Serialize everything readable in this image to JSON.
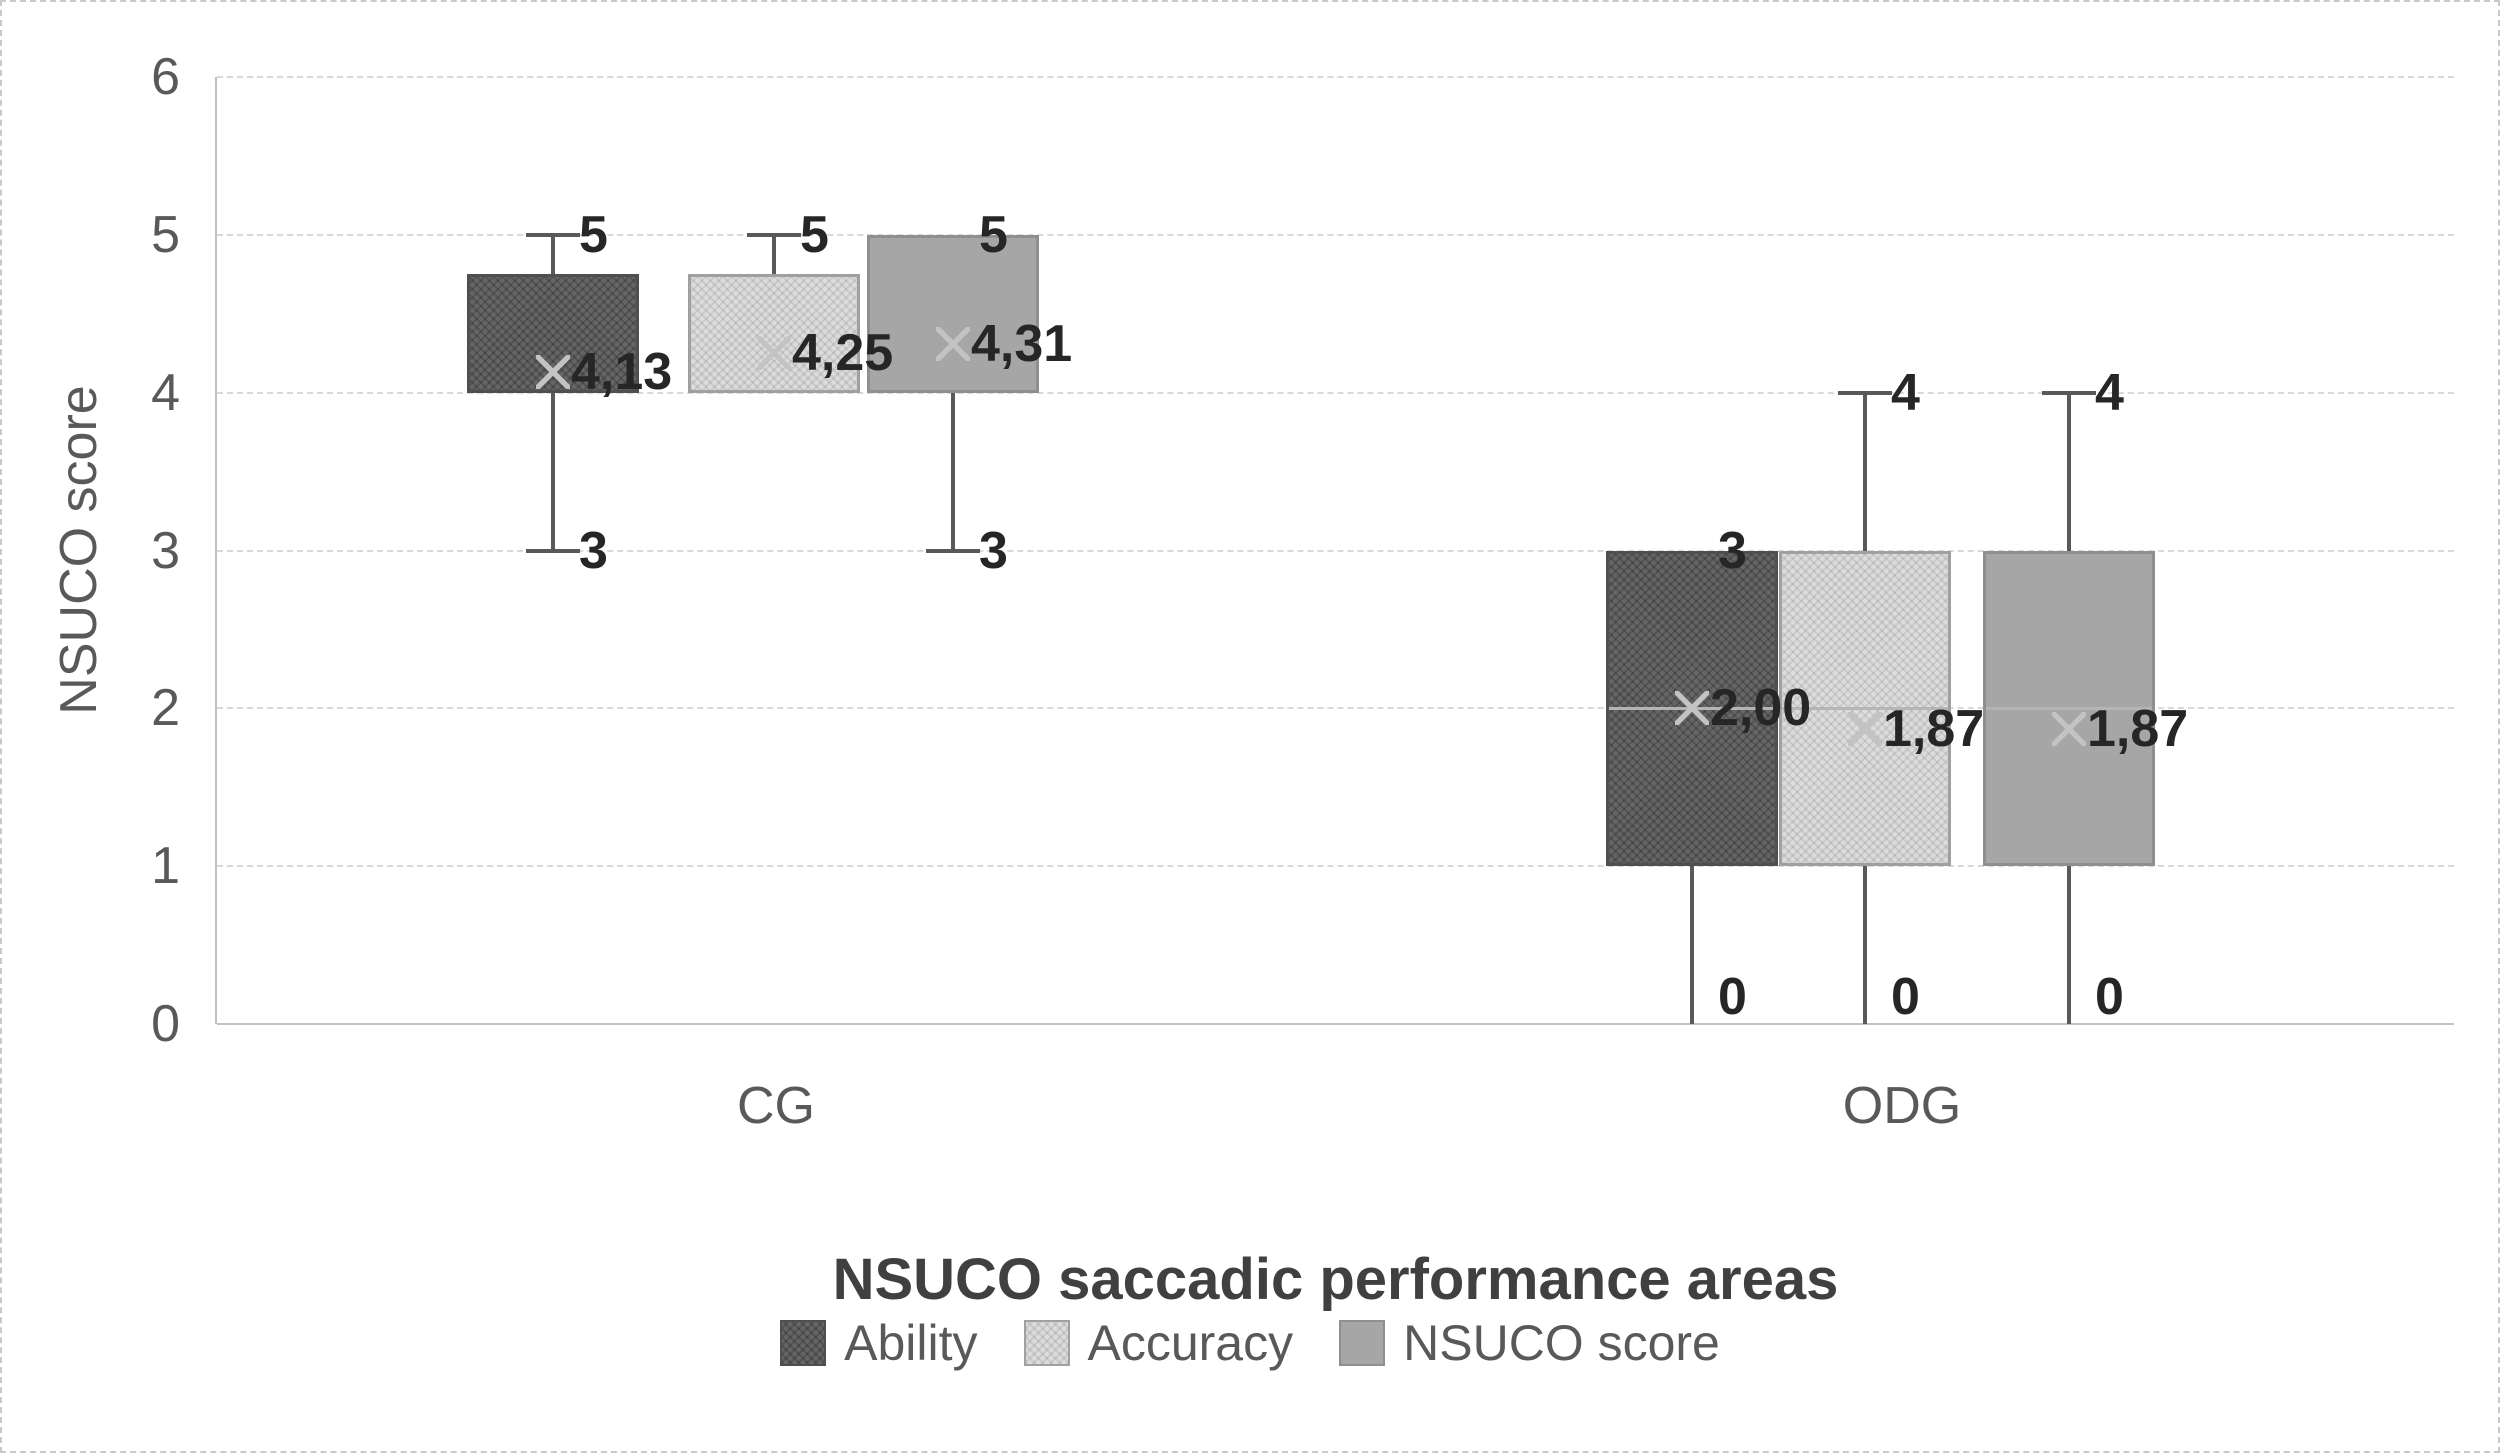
{
  "chart_data": {
    "type": "boxplot",
    "title": "",
    "xlabel": "NSUCO saccadic performance areas",
    "ylabel": "NSUCO score",
    "ylim": [
      0,
      6
    ],
    "yticks": [
      0,
      1,
      2,
      3,
      4,
      5,
      6
    ],
    "categories": [
      "CG",
      "ODG"
    ],
    "grid": "horizontal-dashed",
    "legend_position": "bottom",
    "decimal_separator": ",",
    "series": [
      {
        "name": "Ability",
        "fill": "#666666",
        "border": "#4f4f4f",
        "pattern": "crosshatch-dark"
      },
      {
        "name": "Accuracy",
        "fill": "#dcdcdc",
        "border": "#a0a0a0",
        "pattern": "crosshatch-light"
      },
      {
        "name": "NSUCO score",
        "fill": "#a6a6a6",
        "border": "#8f8f8f",
        "pattern": "solid"
      }
    ],
    "marker": {
      "shape": "x",
      "color": "#c3c3c3",
      "meaning": "mean"
    },
    "groups": [
      {
        "category": "CG",
        "boxes": [
          {
            "series": "Ability",
            "min": 3,
            "q1": 4,
            "median": 4,
            "q3": 4.75,
            "max": 5,
            "mean": 4.13,
            "max_label": "5",
            "min_label": "3",
            "mean_label": "4,13"
          },
          {
            "series": "Accuracy",
            "min": 4,
            "q1": 4,
            "median": 4,
            "q3": 4.75,
            "max": 5,
            "mean": 4.25,
            "max_label": "5",
            "min_label": null,
            "mean_label": "4,25"
          },
          {
            "series": "NSUCO score",
            "min": 3,
            "q1": 4,
            "median": 4,
            "q3": 5,
            "max": 5,
            "mean": 4.31,
            "max_label": "5",
            "min_label": "3",
            "mean_label": "4,31"
          }
        ]
      },
      {
        "category": "ODG",
        "boxes": [
          {
            "series": "Ability",
            "min": 0,
            "q1": 1,
            "median": 2,
            "q3": 3,
            "max": 3,
            "mean": 2.0,
            "max_label": "3",
            "min_label": "0",
            "mean_label": "2,00"
          },
          {
            "series": "Accuracy",
            "min": 0,
            "q1": 1,
            "median": 2,
            "q3": 3,
            "max": 4,
            "mean": 1.87,
            "max_label": "4",
            "min_label": "0",
            "mean_label": "1,87"
          },
          {
            "series": "NSUCO score",
            "min": 0,
            "q1": 1,
            "median": 2,
            "q3": 3,
            "max": 4,
            "mean": 1.87,
            "max_label": "4",
            "min_label": "0",
            "mean_label": "1,87"
          }
        ]
      }
    ]
  }
}
